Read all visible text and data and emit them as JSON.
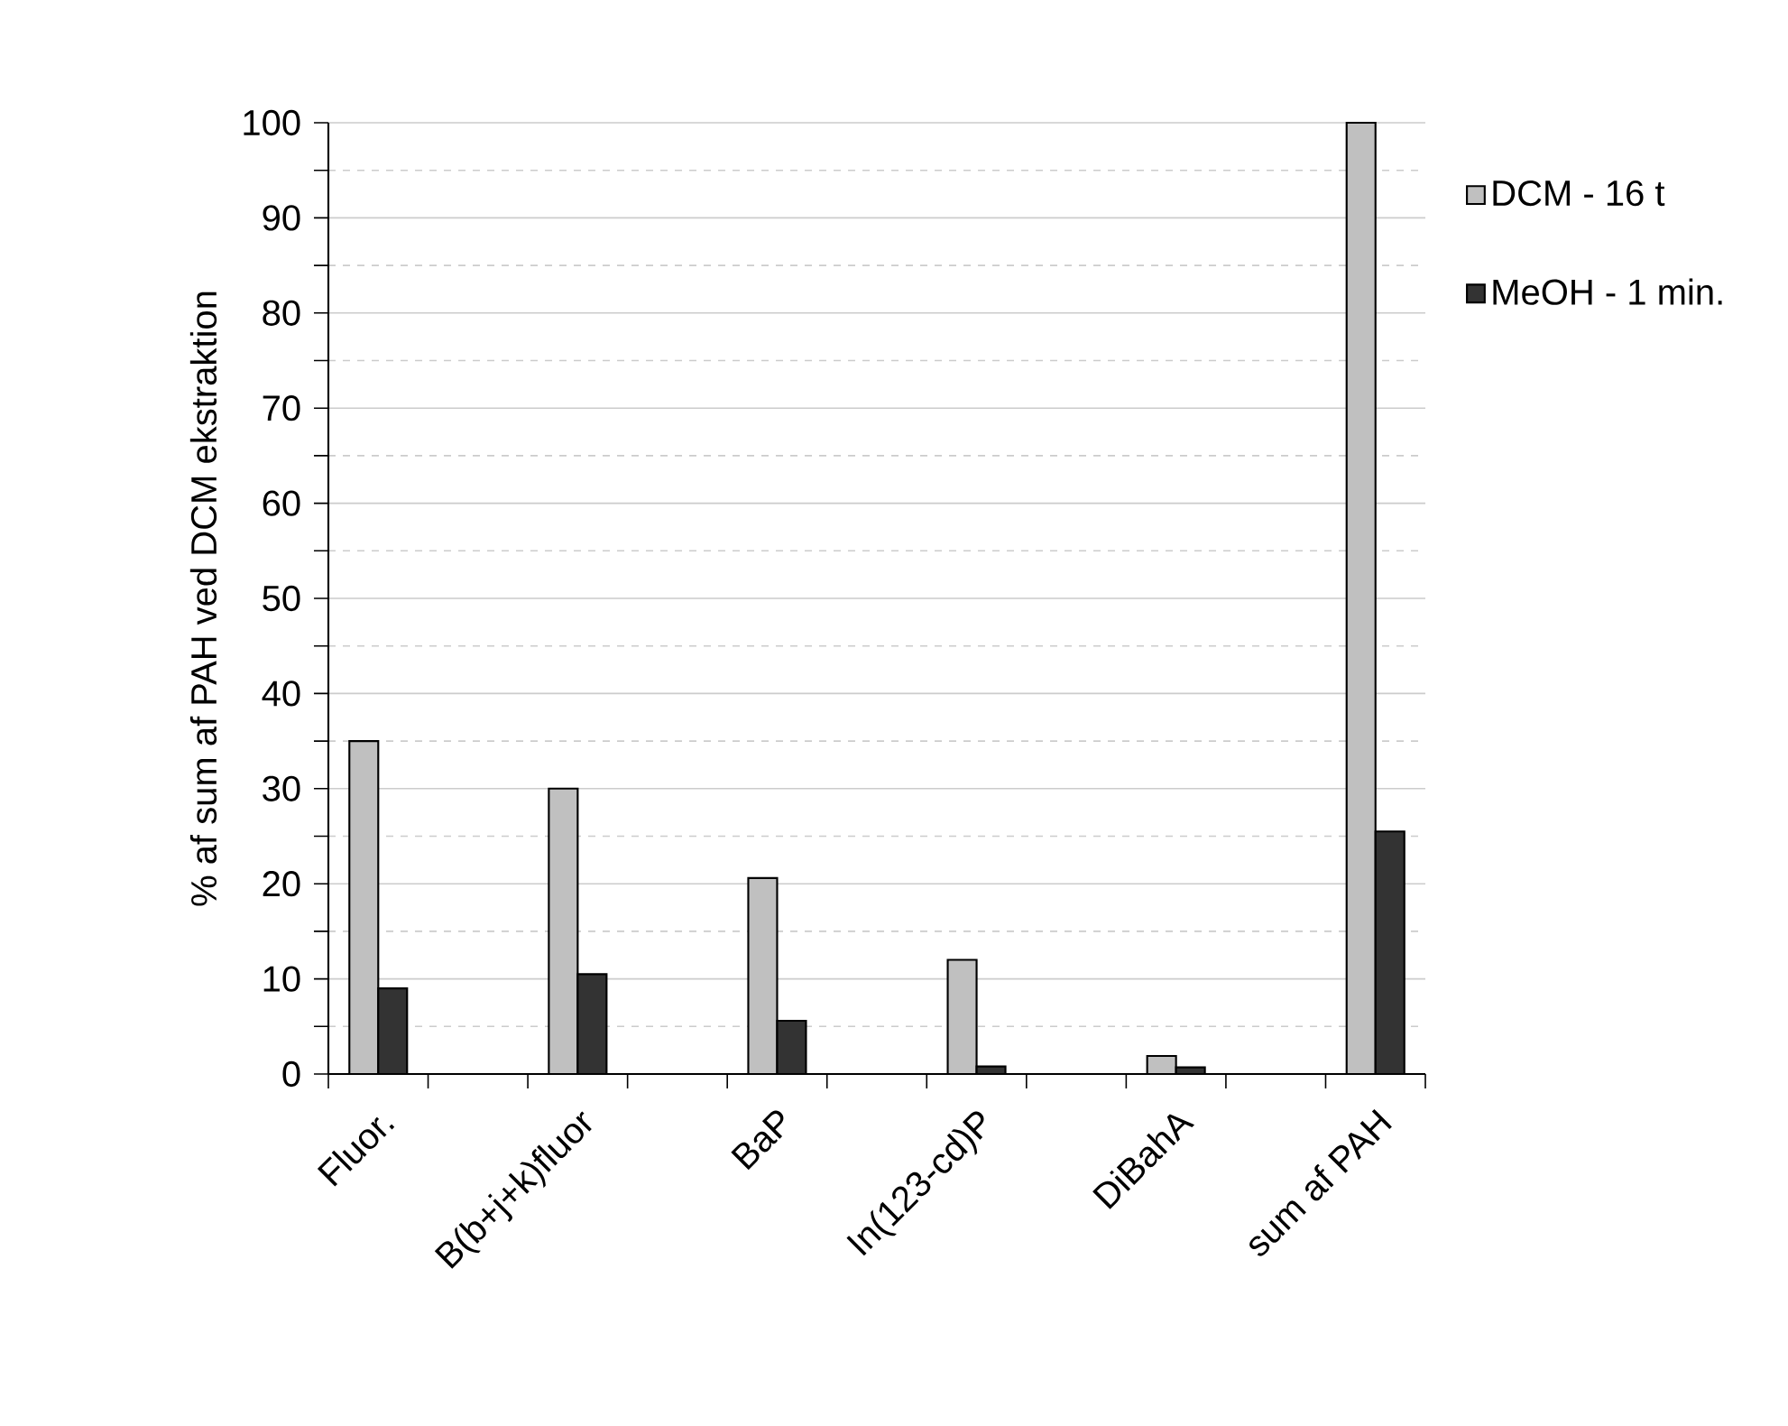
{
  "chart_data": {
    "type": "bar",
    "ylabel": "% af sum af PAH ved DCM ekstraktion",
    "categories": [
      "Fluor.",
      null,
      "B(b+j+k)fluor",
      null,
      "BaP",
      null,
      "In(123-cd)P",
      null,
      "DiBahA",
      null,
      "sum af PAH"
    ],
    "series": [
      {
        "name": "DCM - 16 t",
        "color": "#c0c0c0",
        "values": [
          35,
          null,
          30,
          null,
          20.6,
          null,
          12,
          null,
          1.9,
          null,
          100
        ]
      },
      {
        "name": "MeOH - 1 min.",
        "color": "#333333",
        "values": [
          9,
          null,
          10.5,
          null,
          5.6,
          null,
          0.8,
          null,
          0.7,
          null,
          25.5
        ]
      }
    ],
    "ylim": [
      0,
      100
    ],
    "yticks": [
      0,
      10,
      20,
      30,
      40,
      50,
      60,
      70,
      80,
      90,
      100
    ],
    "grid": "y",
    "legend": "top right"
  }
}
